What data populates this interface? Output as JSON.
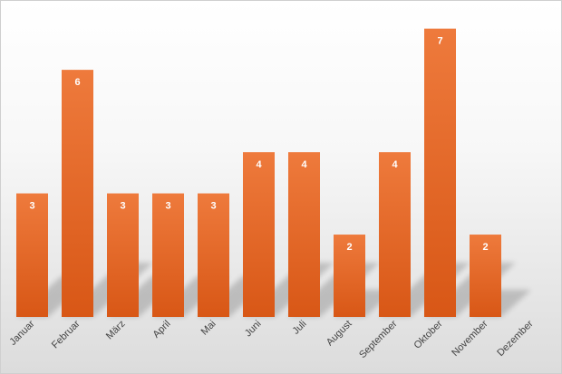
{
  "chart_data": {
    "type": "bar",
    "categories": [
      "Januar",
      "Februar",
      "März",
      "April",
      "Mai",
      "Juni",
      "Juli",
      "August",
      "September",
      "Oktober",
      "November",
      "Dezember"
    ],
    "values": [
      3,
      6,
      3,
      3,
      3,
      4,
      4,
      2,
      4,
      7,
      2,
      0
    ],
    "data_labels": [
      "3",
      "6",
      "3",
      "3",
      "3",
      "4",
      "4",
      "2",
      "4",
      "7",
      "2",
      ""
    ],
    "ylim": [
      0,
      7.3
    ],
    "grid": false,
    "legend": "none",
    "bar_color_top": "#ee7a3c",
    "bar_color_bottom": "#d85716",
    "label_color": "#ffffff"
  }
}
